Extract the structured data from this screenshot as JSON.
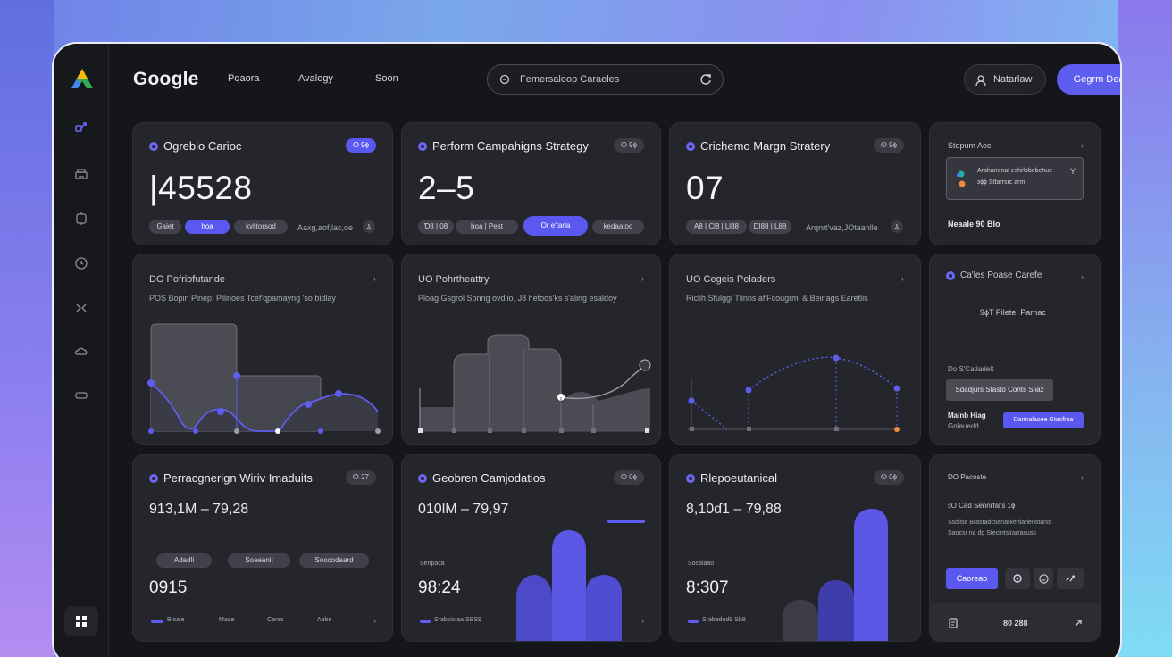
{
  "brand": "Google",
  "nav": [
    "Pqaora",
    "Avalogy",
    "Soon"
  ],
  "search": {
    "value": "Femersaloop Caraeles"
  },
  "header_buttons": {
    "ghost": "Natarlaw",
    "primary": "Gegrm Deatert"
  },
  "kpi_cards": [
    {
      "title": "Ogreblo Carioc",
      "badge": "ⵙ 9ɸ",
      "value": "|45528",
      "pills": [
        "Gaiet",
        "hoa",
        "kvlitorsod"
      ],
      "foot": "Aaxg,aof,lac,oe"
    },
    {
      "title": "Perform Campahigns Strategy",
      "badge": "ⵙ 9ɸ",
      "value": "2–5",
      "pills": [
        "Ɗ8 | 08",
        "hoa | Pest",
        "Or e'tarla",
        "kedaatoo"
      ]
    },
    {
      "title": "Crichemo Margn Stratery",
      "badge": "ⵙ 9ɸ",
      "value": "07",
      "pills": [
        "A8 | Cl8 | Ll88",
        "DI88 | L88"
      ],
      "foot": "Arqnrt'vaz,JOtaanlle"
    }
  ],
  "side_card_top": {
    "title": "Stepum Aoc",
    "notice": [
      "Arahanenal eshrlobebehus",
      "ɜɸɸ Stfarrsrc arm"
    ],
    "foot": "Neaale 90 Blo"
  },
  "chart_cards": [
    {
      "title": "DO Pofribfutande",
      "desc": "POS Bopin Pinep: Pilinoes Tcef'ɋpamayng 'so bidlay"
    },
    {
      "title": "UO Pohrtheattry",
      "desc": "Ploag Gsgrol Sbnng ovdlio, J8 hetoos'ks s'aling esaldoy"
    },
    {
      "title": "UO Cegeis Peladers",
      "desc": "Riclih Sfulggi Tlinns af'Fcougrmi & Beinags Earetlis"
    }
  ],
  "side_card_mid": {
    "title": "Ca'les Poase Carefe",
    "center": "9ɸT Pilete, Parnac",
    "label": "Do S'Cadadelt",
    "button": "Sdadjurs Stasto Conts Sliaz",
    "row_title": "Mainb Hiag",
    "row_sub": "Gnlauedd",
    "row_button": "Dannalaoee Gtacfraa"
  },
  "metric_cards": [
    {
      "title": "Perracgnerign Wiriv Imaduits",
      "badge": "ⵙ 27",
      "mid": "913,1M – 79,28",
      "pills": [
        "Adadli",
        "Soaeanit",
        "Soocodaard"
      ],
      "low": "0915",
      "legend": [
        "Bloaie",
        "Maae",
        "Canrs",
        "Aabe"
      ]
    },
    {
      "title": "Geobren Camjodatios",
      "badge": "ⵙ 0ɸ",
      "mid": "010lM – 79,97",
      "label": "Senpaca",
      "low": "98:24",
      "legend": [
        "Srabsiolaa SBS9"
      ]
    },
    {
      "title": "Rlepoeutanical",
      "badge": "ⵙ 0ɸ",
      "mid": "8,10ɗ1 – 79,88",
      "label": "Socalaao",
      "low": "8:307",
      "legend": [
        "Srabedod9 Sb9"
      ]
    }
  ],
  "side_card_bottom": {
    "title": "DO Pacoste",
    "line1": "ɜO Cad Sennrfal's 1ɸ",
    "line2": "Ssd'ise Brastadcsenarkehiarlenstanls",
    "line3": "Saocsr na dg Sfecintsirarrasuss",
    "button": "Caoreao",
    "footer": "80 288"
  },
  "colors": {
    "accent": "#5f5df0",
    "card": "#25262c",
    "frame": "#151619"
  }
}
